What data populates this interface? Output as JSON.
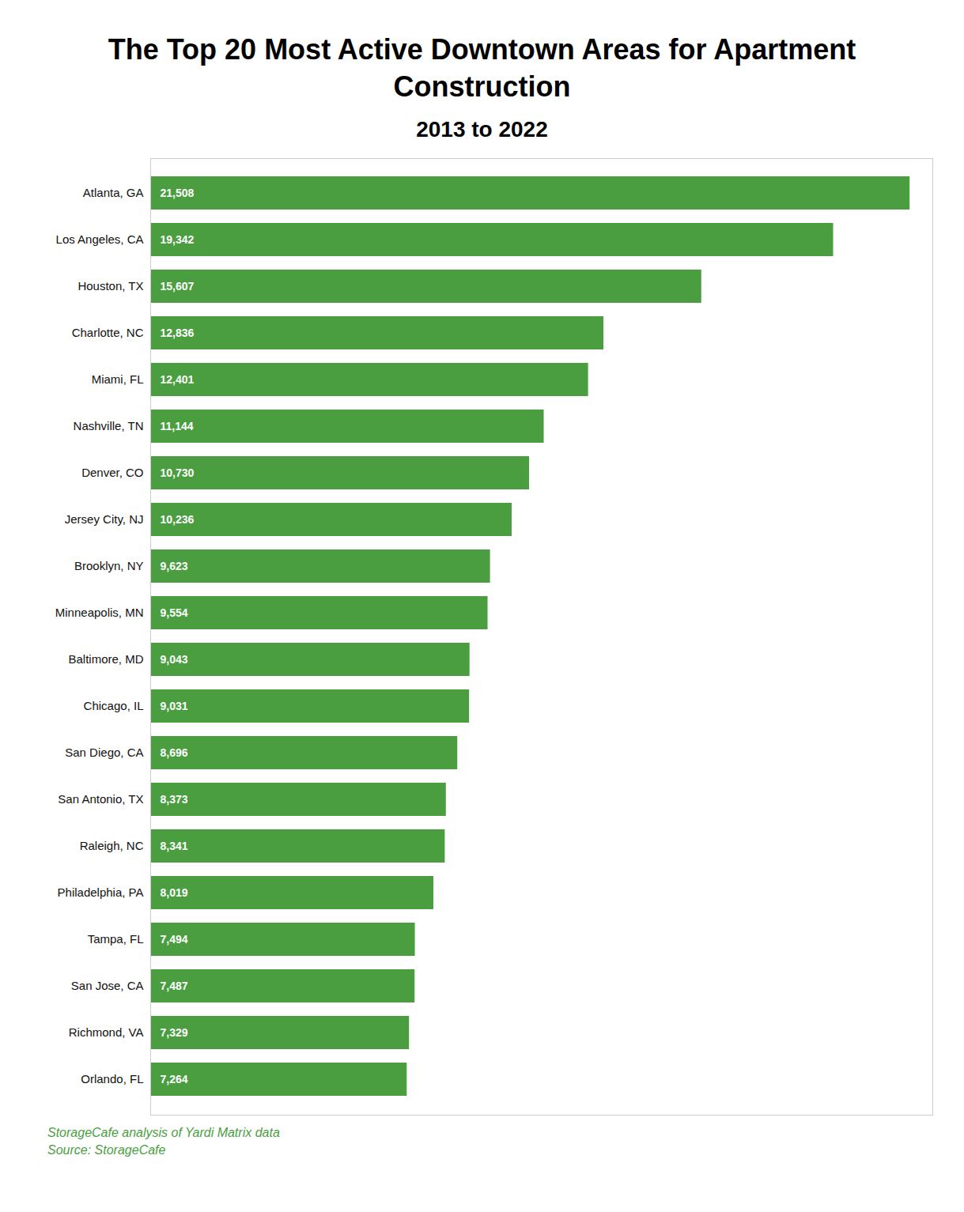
{
  "chart_data": {
    "type": "bar",
    "orientation": "horizontal",
    "title": "The Top 20 Most Active Downtown Areas for Apartment\nConstruction",
    "subtitle": "2013 to 2022",
    "footnotes": [
      "StorageCafe analysis of Yardi Matrix data",
      "Source: StorageCafe"
    ],
    "categories": [
      "Atlanta, GA",
      "Los Angeles, CA",
      "Houston, TX",
      "Charlotte, NC",
      "Miami, FL",
      "Nashville, TN",
      "Denver, CO",
      "Jersey City, NJ",
      "Brooklyn, NY",
      "Minneapolis, MN",
      "Baltimore, MD",
      "Chicago, IL",
      "San Diego, CA",
      "San Antonio, TX",
      "Raleigh, NC",
      "Philadelphia, PA",
      "Tampa, FL",
      "San Jose, CA",
      "Richmond, VA",
      "Orlando, FL"
    ],
    "values": [
      21508,
      19342,
      15607,
      12836,
      12401,
      11144,
      10730,
      10236,
      9623,
      9554,
      9043,
      9031,
      8696,
      8373,
      8341,
      8019,
      7494,
      7487,
      7329,
      7264
    ],
    "value_labels": [
      "21,508",
      "19,342",
      "15,607",
      "12,836",
      "12,401",
      "11,144",
      "10,730",
      "10,236",
      "9,623",
      "9,554",
      "9,043",
      "9,031",
      "8,696",
      "8,373",
      "8,341",
      "8,019",
      "7,494",
      "7,487",
      "7,329",
      "7,264"
    ],
    "color": "#4a9e3f",
    "xlim": [
      0,
      22153.24
    ],
    "data_labels": true,
    "tick_labels": "y"
  }
}
